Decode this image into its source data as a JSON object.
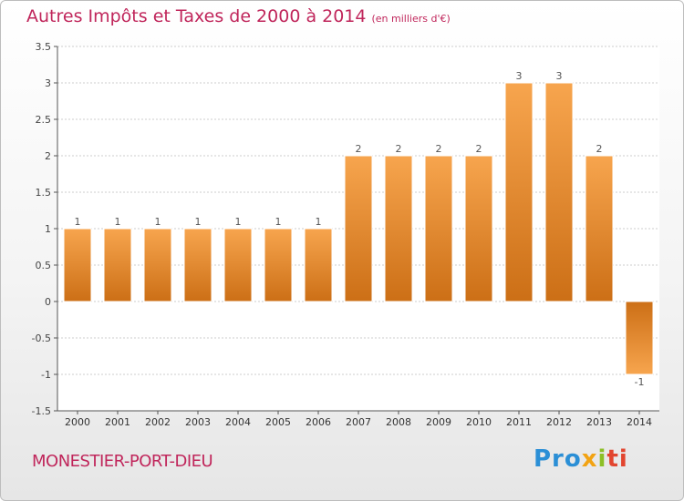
{
  "header": {
    "title": "Autres Impôts et Taxes de 2000 à 2014",
    "unit": "(en milliers d'€)"
  },
  "footer": {
    "commune": "MONESTIER-PORT-DIEU",
    "logo": [
      "Pro",
      "x",
      "i",
      "ti"
    ]
  },
  "colors": {
    "title": "#c0265b",
    "bar_light": "#f7a54e",
    "bar_dark": "#cc6f16",
    "grid": "#cccccc",
    "axis": "#555555"
  },
  "chart_data": {
    "type": "bar",
    "title": "Autres Impôts et Taxes de 2000 à 2014",
    "xlabel": "",
    "ylabel": "",
    "categories": [
      "2000",
      "2001",
      "2002",
      "2003",
      "2004",
      "2005",
      "2006",
      "2007",
      "2008",
      "2009",
      "2010",
      "2011",
      "2012",
      "2013",
      "2014"
    ],
    "values": [
      1,
      1,
      1,
      1,
      1,
      1,
      1,
      2,
      2,
      2,
      2,
      3,
      3,
      2,
      -1
    ],
    "value_labels": [
      "1",
      "1",
      "1",
      "1",
      "1",
      "1",
      "1",
      "2",
      "2",
      "2",
      "2",
      "3",
      "3",
      "2",
      "-1"
    ],
    "ylim": [
      -1.5,
      3.5
    ],
    "yticks": [
      -1.5,
      -1,
      -0.5,
      0,
      0.5,
      1,
      1.5,
      2,
      2.5,
      3,
      3.5
    ],
    "ytick_labels": [
      "-1.5",
      "-1",
      "-0.5",
      "0",
      "0.5",
      "1",
      "1.5",
      "2",
      "2.5",
      "3",
      "3.5"
    ],
    "grid": true,
    "legend": "none"
  }
}
